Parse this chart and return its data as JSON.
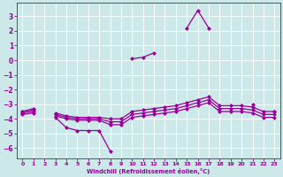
{
  "xlabel": "Windchill (Refroidissement éolien,°C)",
  "bg_color": "#cce8e8",
  "line_color": "#990099",
  "xlim": [
    -0.5,
    23.5
  ],
  "ylim": [
    -6.7,
    3.9
  ],
  "xticks": [
    0,
    1,
    2,
    3,
    4,
    5,
    6,
    7,
    8,
    9,
    10,
    11,
    12,
    13,
    14,
    15,
    16,
    17,
    18,
    19,
    20,
    21,
    22,
    23
  ],
  "yticks": [
    -6,
    -5,
    -4,
    -3,
    -2,
    -1,
    0,
    1,
    2,
    3
  ],
  "x": [
    0,
    1,
    2,
    3,
    4,
    5,
    6,
    7,
    8,
    9,
    10,
    11,
    12,
    13,
    14,
    15,
    16,
    17,
    18,
    19,
    20,
    21,
    22,
    23
  ],
  "main_y": [
    -3.5,
    -3.3,
    null,
    -3.9,
    -4.6,
    -4.8,
    -4.8,
    -4.8,
    -6.2,
    null,
    0.1,
    0.2,
    0.5,
    null,
    null,
    2.2,
    3.4,
    2.2,
    null,
    null,
    null,
    -3.0,
    null,
    -3.5
  ],
  "upper_y": [
    -3.5,
    -3.4,
    null,
    -3.6,
    -3.8,
    -3.9,
    -3.9,
    -3.9,
    -4.0,
    -4.0,
    -3.5,
    -3.4,
    -3.3,
    -3.2,
    -3.1,
    -2.9,
    -2.7,
    -2.5,
    -3.1,
    -3.1,
    -3.1,
    -3.2,
    -3.5,
    -3.5
  ],
  "mid1_y": [
    -3.6,
    -3.5,
    null,
    -3.7,
    -3.9,
    -4.0,
    -4.0,
    -4.0,
    -4.2,
    -4.2,
    -3.7,
    -3.6,
    -3.5,
    -3.4,
    -3.3,
    -3.1,
    -2.9,
    -2.7,
    -3.3,
    -3.3,
    -3.3,
    -3.4,
    -3.7,
    -3.7
  ],
  "mid2_y": [
    -3.7,
    -3.6,
    null,
    -3.8,
    -4.0,
    -4.1,
    -4.1,
    -4.1,
    -4.4,
    -4.4,
    -3.9,
    -3.8,
    -3.7,
    -3.6,
    -3.5,
    -3.3,
    -3.1,
    -2.9,
    -3.5,
    -3.5,
    -3.5,
    -3.6,
    -3.9,
    -3.9
  ],
  "markersize": 2.5,
  "linewidth": 0.9
}
